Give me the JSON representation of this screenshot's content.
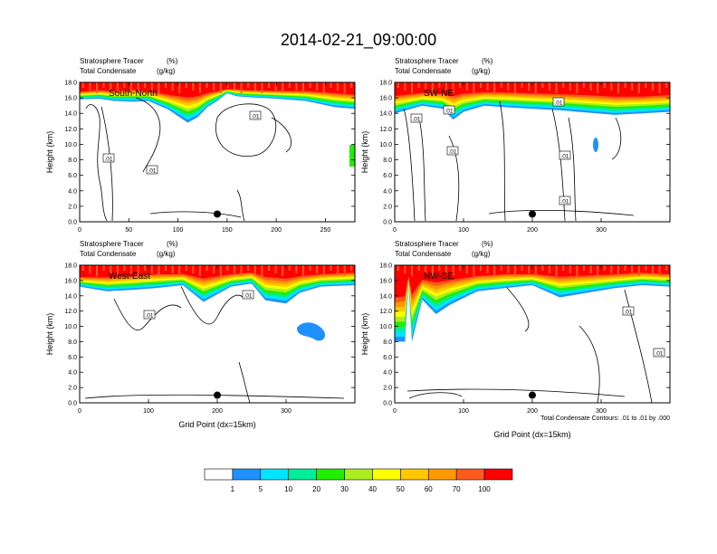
{
  "title": "2014-02-21_09:00:00",
  "colors": [
    "#ffffff",
    "#1e90ff",
    "#00e5ff",
    "#00ee99",
    "#22ee00",
    "#aaee22",
    "#ffff00",
    "#ffc800",
    "#ff9900",
    "#ff5a1e",
    "#ff0000"
  ],
  "colorbar": {
    "labels": [
      "1",
      "5",
      "10",
      "20",
      "30",
      "40",
      "50",
      "60",
      "70",
      "100"
    ]
  },
  "chart_data": [
    {
      "type": "heatmap",
      "panel": "South-North",
      "header_left_1": "Stratosphere Tracer",
      "header_right_1": "(%)",
      "header_left_2": "Total Condensate",
      "header_right_2": "(g/kg)",
      "ylabel": "Height (km)",
      "xlabel": "",
      "xlim": [
        0,
        280
      ],
      "ylim": [
        0,
        18
      ],
      "xticks": [
        "0",
        "50",
        "100",
        "150",
        "200",
        "250"
      ],
      "yticks": [
        "0.0",
        "2.0",
        "4.0",
        "6.0",
        "8.0",
        "10.0",
        "12.0",
        "14.0",
        "16.0",
        "18.0"
      ],
      "contour_labels": [
        ".01",
        ".01",
        ".01"
      ],
      "marker_x": 140,
      "tracer_profile": {
        "x": [
          0,
          20,
          35,
          55,
          70,
          90,
          110,
          120,
          130,
          140,
          150,
          160,
          170,
          200,
          230,
          260,
          280
        ],
        "base_km": [
          15.8,
          15.9,
          15.6,
          15.5,
          15.6,
          14.5,
          12.8,
          13.5,
          14.8,
          15.6,
          16.6,
          16.2,
          16.1,
          15.9,
          15.6,
          14.8,
          14.6
        ],
        "top_km": [
          16.9,
          17.1,
          17.0,
          17.2,
          17.0,
          16.6,
          16.4,
          16.5,
          16.8,
          17.0,
          17.2,
          17.2,
          17.1,
          17.0,
          17.0,
          16.8,
          16.6
        ]
      }
    },
    {
      "type": "heatmap",
      "panel": "SW-NE",
      "header_left_1": "Stratosphere Tracer",
      "header_right_1": "(%)",
      "header_left_2": "Total Condensate",
      "header_right_2": "(g/kg)",
      "ylabel": "Height (km)",
      "xlabel": "",
      "xlim": [
        0,
        400
      ],
      "ylim": [
        0,
        18
      ],
      "xticks": [
        "0",
        "100",
        "200",
        "300"
      ],
      "yticks": [
        "0.0",
        "2.0",
        "4.0",
        "6.0",
        "8.0",
        "10.0",
        "12.0",
        "14.0",
        "16.0",
        "18.0"
      ],
      "contour_labels": [
        ".01",
        ".01",
        ".01",
        ".01",
        ".01",
        ".01"
      ],
      "marker_x": 200,
      "tracer_profile": {
        "x": [
          0,
          40,
          70,
          85,
          100,
          130,
          160,
          200,
          240,
          280,
          320,
          360,
          400
        ],
        "base_km": [
          14.0,
          15.0,
          14.6,
          13.2,
          14.2,
          15.0,
          14.8,
          14.6,
          14.4,
          14.1,
          13.8,
          14.0,
          14.2
        ],
        "top_km": [
          16.5,
          16.8,
          16.8,
          16.6,
          16.8,
          16.9,
          16.9,
          16.8,
          16.7,
          16.6,
          16.4,
          16.4,
          16.6
        ]
      }
    },
    {
      "type": "heatmap",
      "panel": "West-East",
      "header_left_1": "Stratosphere Tracer",
      "header_right_1": "(%)",
      "header_left_2": "Total Condensate",
      "header_right_2": "(g/kg)",
      "ylabel": "Height (km)",
      "xlabel": "Grid Point (dx=15km)",
      "xlim": [
        0,
        400
      ],
      "ylim": [
        0,
        18
      ],
      "xticks": [
        "0",
        "100",
        "200",
        "300"
      ],
      "yticks": [
        "0.0",
        "2.0",
        "4.0",
        "6.0",
        "8.0",
        "10.0",
        "12.0",
        "14.0",
        "16.0",
        "18.0"
      ],
      "contour_labels": [
        ".01",
        ".01"
      ],
      "marker_x": 200,
      "tracer_profile": {
        "x": [
          0,
          40,
          80,
          110,
          150,
          180,
          220,
          250,
          270,
          300,
          320,
          350,
          400
        ],
        "base_km": [
          15.2,
          14.6,
          14.8,
          15.0,
          15.4,
          13.2,
          15.2,
          15.6,
          13.4,
          13.0,
          14.4,
          15.2,
          15.4
        ],
        "top_km": [
          16.6,
          16.6,
          16.8,
          17.0,
          17.0,
          16.6,
          17.0,
          17.2,
          16.8,
          16.6,
          16.8,
          17.0,
          17.2
        ]
      }
    },
    {
      "type": "heatmap",
      "panel": "NW-SE",
      "header_left_1": "Stratosphere Tracer",
      "header_right_1": "(%)",
      "header_left_2": "Total Condensate",
      "header_right_2": "(g/kg)",
      "ylabel": "Height (km)",
      "xlabel": "Grid Point (dx=15km)",
      "xlim": [
        0,
        400
      ],
      "ylim": [
        0,
        18
      ],
      "xticks": [
        "0",
        "100",
        "200",
        "300"
      ],
      "yticks": [
        "0.0",
        "2.0",
        "4.0",
        "6.0",
        "8.0",
        "10.0",
        "12.0",
        "14.0",
        "16.0",
        "18.0"
      ],
      "contour_labels": [
        ".01",
        ".01"
      ],
      "marker_x": 200,
      "contour_note": "Total Condensate Contours: .01 to .01 by .000",
      "tracer_profile": {
        "x": [
          0,
          15,
          20,
          25,
          40,
          60,
          80,
          120,
          160,
          200,
          240,
          280,
          320,
          360,
          400
        ],
        "base_km": [
          8.0,
          8.0,
          15.6,
          8.0,
          13.5,
          11.6,
          12.8,
          14.6,
          15.0,
          15.4,
          13.8,
          14.4,
          15.0,
          15.4,
          15.2
        ],
        "top_km": [
          14.4,
          14.6,
          16.6,
          14.8,
          16.4,
          16.2,
          16.4,
          16.8,
          17.0,
          17.0,
          16.8,
          16.9,
          17.0,
          17.2,
          17.0
        ]
      }
    }
  ]
}
